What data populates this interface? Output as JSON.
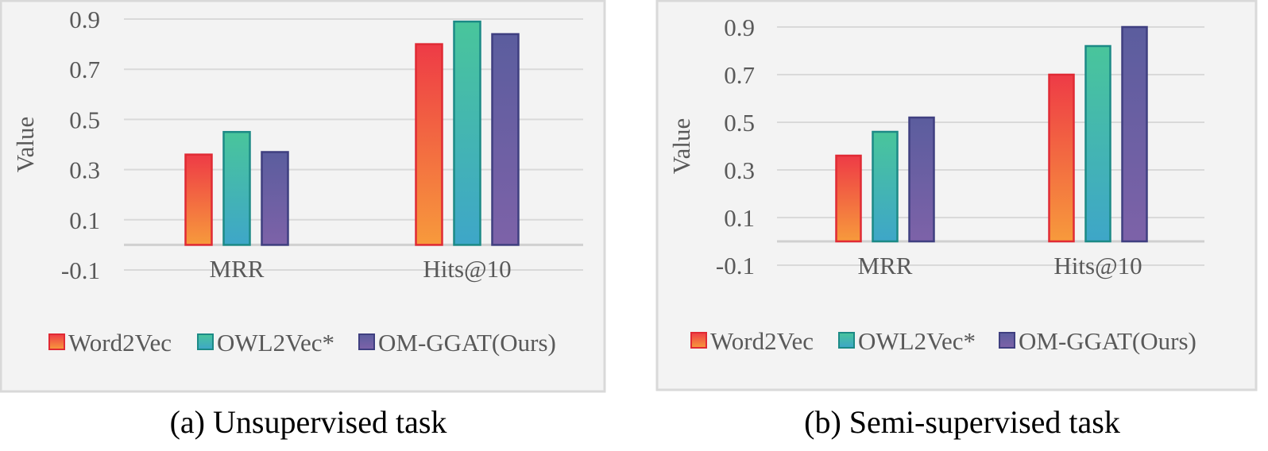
{
  "colors": {
    "panel_background": "#f3f3f3",
    "panel_border": "#d9d9d9",
    "gridline": "#d9d9d9",
    "zero_line": "#d0d0d0",
    "text": "#595959",
    "word2vec": {
      "top": "#ee3b46",
      "bottom": "#f79a3c",
      "stroke": "#e02a34"
    },
    "owl2vec": {
      "top": "#49c59b",
      "bottom": "#3ea6c8",
      "stroke": "#1c8a86"
    },
    "omggat": {
      "top": "#5b5d9e",
      "bottom": "#7d62a8",
      "stroke": "#3f3f80"
    }
  },
  "chart_data": [
    {
      "type": "bar",
      "ylabel": "Value",
      "xlabel": "",
      "ylim": [
        -0.1,
        0.9
      ],
      "yticks": [
        "-0.1",
        "0.1",
        "0.3",
        "0.5",
        "0.7",
        "0.9"
      ],
      "grid": true,
      "legend_position": "bottom",
      "categories": [
        "MRR",
        "Hits@10"
      ],
      "series": [
        {
          "name": "Word2Vec",
          "values": [
            0.36,
            0.8
          ]
        },
        {
          "name": "OWL2Vec*",
          "values": [
            0.45,
            0.89
          ]
        },
        {
          "name": "OM-GGAT(Ours)",
          "values": [
            0.37,
            0.84
          ]
        }
      ]
    },
    {
      "type": "bar",
      "ylabel": "Value",
      "xlabel": "",
      "ylim": [
        -0.1,
        0.9
      ],
      "yticks": [
        "-0.1",
        "0.1",
        "0.3",
        "0.5",
        "0.7",
        "0.9"
      ],
      "grid": true,
      "legend_position": "bottom",
      "categories": [
        "MRR",
        "Hits@10"
      ],
      "series": [
        {
          "name": "Word2Vec",
          "values": [
            0.36,
            0.7
          ]
        },
        {
          "name": "OWL2Vec*",
          "values": [
            0.46,
            0.82
          ]
        },
        {
          "name": "OM-GGAT(Ours)",
          "values": [
            0.52,
            0.9
          ]
        }
      ]
    }
  ],
  "captions": [
    "(a) Unsupervised task",
    "(b) Semi-supervised task"
  ]
}
